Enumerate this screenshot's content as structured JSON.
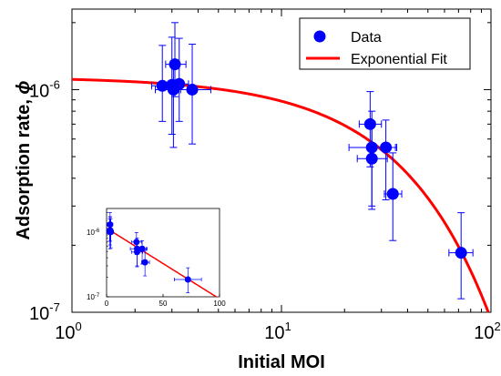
{
  "chart_data": [
    {
      "type": "scatter",
      "role": "main",
      "xlabel": "Initial MOI",
      "ylabel": "Adsorption rate, ",
      "ylabel_symbol": "ϕ",
      "x_scale": "log",
      "y_scale": "log",
      "xlim": [
        1,
        100
      ],
      "ylim": [
        1e-07,
        2.3e-06
      ],
      "x_ticks": [
        {
          "base": "10",
          "exp": "0",
          "value": 1
        },
        {
          "base": "10",
          "exp": "1",
          "value": 10
        },
        {
          "base": "10",
          "exp": "2",
          "value": 100
        }
      ],
      "y_ticks": [
        {
          "base": "10",
          "exp": "-7",
          "value": 1e-07
        },
        {
          "base": "10",
          "exp": "-6",
          "value": 1e-06
        }
      ],
      "grid": false,
      "legend_position": "top-right",
      "legend": {
        "data_label": "Data",
        "fit_label": "Exponential Fit"
      },
      "colors": {
        "data": "#0000ff",
        "fit": "#ff0000"
      },
      "series": [
        {
          "name": "Data",
          "kind": "points_with_xy_error",
          "points": [
            {
              "x": 2.7,
              "y": 1.04e-06,
              "xerr": [
                2.4,
                3.1
              ],
              "yerr": [
                7.2e-07,
                1.58e-06
              ]
            },
            {
              "x": 3.0,
              "y": 1.05e-06,
              "xerr": [
                2.75,
                3.25
              ],
              "yerr": [
                6.3e-07,
                1.72e-06
              ]
            },
            {
              "x": 3.1,
              "y": 1.3e-06,
              "xerr": [
                2.8,
                3.5
              ],
              "yerr": [
                9.3e-07,
                2e-06
              ]
            },
            {
              "x": 3.25,
              "y": 1.06e-06,
              "xerr": [
                2.9,
                3.6
              ],
              "yerr": [
                7.2e-07,
                1.7e-06
              ]
            },
            {
              "x": 3.05,
              "y": 1e-06,
              "xerr": [
                2.5,
                3.3
              ],
              "yerr": [
                5.5e-07,
                1.3e-06
              ]
            },
            {
              "x": 3.75,
              "y": 1e-06,
              "xerr": [
                3.15,
                4.6
              ],
              "yerr": [
                5.7e-07,
                1.6e-06
              ]
            },
            {
              "x": 26.5,
              "y": 7e-07,
              "xerr": [
                23.5,
                30
              ],
              "yerr": [
                4.5e-07,
                9.8e-07
              ]
            },
            {
              "x": 27,
              "y": 5.5e-07,
              "xerr": [
                21,
                35
              ],
              "yerr": [
                3e-07,
                8e-07
              ]
            },
            {
              "x": 31.5,
              "y": 5.5e-07,
              "xerr": [
                28,
                35.5
              ],
              "yerr": [
                3.2e-07,
                7.3e-07
              ]
            },
            {
              "x": 27,
              "y": 4.9e-07,
              "xerr": [
                23,
                32
              ],
              "yerr": [
                2.9e-07,
                7.2e-07
              ]
            },
            {
              "x": 34,
              "y": 3.4e-07,
              "xerr": [
                31,
                37.5
              ],
              "yerr": [
                2.1e-07,
                5.2e-07
              ]
            },
            {
              "x": 72,
              "y": 1.85e-07,
              "xerr": [
                63,
                82
              ],
              "yerr": [
                1.15e-07,
                2.8e-07
              ]
            }
          ]
        },
        {
          "name": "Exponential Fit",
          "kind": "line",
          "function": "exponential",
          "amplitude": 1.14e-06,
          "rate": 0.02506
        }
      ]
    },
    {
      "type": "scatter",
      "role": "inset",
      "x_scale": "linear",
      "y_scale": "log",
      "xlim": [
        0,
        100
      ],
      "ylim": [
        1e-07,
        2.3e-06
      ],
      "x_ticks": [
        {
          "label": "0",
          "value": 0
        },
        {
          "label": "50",
          "value": 50
        },
        {
          "label": "100",
          "value": 100
        }
      ],
      "y_ticks": [
        {
          "base": "10",
          "exp": "-7",
          "value": 1e-07
        },
        {
          "base": "10",
          "exp": "-6",
          "value": 1e-06
        }
      ],
      "series": [
        {
          "name": "Data",
          "kind": "points_with_xy_error",
          "points": [
            {
              "x": 2.7,
              "y": 1.04e-06,
              "xerr": [
                0.5,
                5
              ],
              "yerr": [
                7.2e-07,
                1.58e-06
              ]
            },
            {
              "x": 3.0,
              "y": 1.05e-06,
              "xerr": [
                0.5,
                5
              ],
              "yerr": [
                6.3e-07,
                1.72e-06
              ]
            },
            {
              "x": 3.1,
              "y": 1.3e-06,
              "xerr": [
                0.5,
                5.5
              ],
              "yerr": [
                9.3e-07,
                2e-06
              ]
            },
            {
              "x": 3.25,
              "y": 1.06e-06,
              "xerr": [
                0.5,
                5.5
              ],
              "yerr": [
                7.2e-07,
                1.7e-06
              ]
            },
            {
              "x": 3.05,
              "y": 1e-06,
              "xerr": [
                0.5,
                5.5
              ],
              "yerr": [
                5.5e-07,
                1.3e-06
              ]
            },
            {
              "x": 3.75,
              "y": 1e-06,
              "xerr": [
                0.5,
                6
              ],
              "yerr": [
                5.7e-07,
                1.6e-06
              ]
            },
            {
              "x": 26.5,
              "y": 7e-07,
              "xerr": [
                22,
                31
              ],
              "yerr": [
                4.5e-07,
                9.8e-07
              ]
            },
            {
              "x": 27,
              "y": 5.5e-07,
              "xerr": [
                21,
                35
              ],
              "yerr": [
                3e-07,
                8e-07
              ]
            },
            {
              "x": 31.5,
              "y": 5.5e-07,
              "xerr": [
                27,
                36
              ],
              "yerr": [
                3.2e-07,
                7.3e-07
              ]
            },
            {
              "x": 27,
              "y": 4.9e-07,
              "xerr": [
                22,
                32
              ],
              "yerr": [
                2.9e-07,
                7.2e-07
              ]
            },
            {
              "x": 34,
              "y": 3.4e-07,
              "xerr": [
                31,
                38
              ],
              "yerr": [
                2.1e-07,
                5.2e-07
              ]
            },
            {
              "x": 72,
              "y": 1.85e-07,
              "xerr": [
                60,
                84
              ],
              "yerr": [
                1.15e-07,
                2.8e-07
              ]
            }
          ]
        },
        {
          "name": "Exponential Fit",
          "kind": "line",
          "function": "exponential",
          "amplitude": 1.14e-06,
          "rate": 0.02506
        }
      ]
    }
  ]
}
